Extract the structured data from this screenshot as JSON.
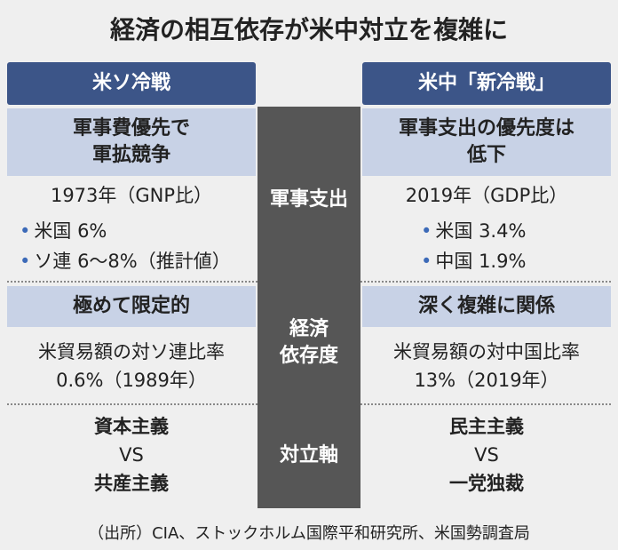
{
  "header": {
    "title": "経済の相互依存が米中対立を複雑に"
  },
  "columns": {
    "left": "米ソ冷戦",
    "right": "米中「新冷戦」"
  },
  "rows": [
    {
      "label": "軍事支出",
      "left": {
        "headline": "軍事費優先で\n軍拡競争",
        "lines": [
          "1973年（GNP比）",
          "米国 6%",
          "ソ連 6〜8%（推計値）"
        ]
      },
      "right": {
        "headline": "軍事支出の優先度は\n低下",
        "lines": [
          "2019年（GDP比）",
          "米国 3.4%",
          "中国 1.9%"
        ]
      }
    },
    {
      "label": "経済\n依存度",
      "left": {
        "headline": "極めて限定的",
        "lines": [
          "米貿易額の対ソ連比率",
          "0.6%（1989年）"
        ]
      },
      "right": {
        "headline": "深く複雑に関係",
        "lines": [
          "米貿易額の対中国比率",
          "13%（2019年）"
        ]
      }
    },
    {
      "label": "対立軸",
      "left": {
        "lines": [
          "資本主義",
          "VS",
          "共産主義"
        ]
      },
      "right": {
        "lines": [
          "民主主義",
          "VS",
          "一党独裁"
        ]
      }
    }
  ],
  "footer": {
    "source": "（出所）CIA、ストックホルム国際平和研究所、米国勢調査局"
  }
}
